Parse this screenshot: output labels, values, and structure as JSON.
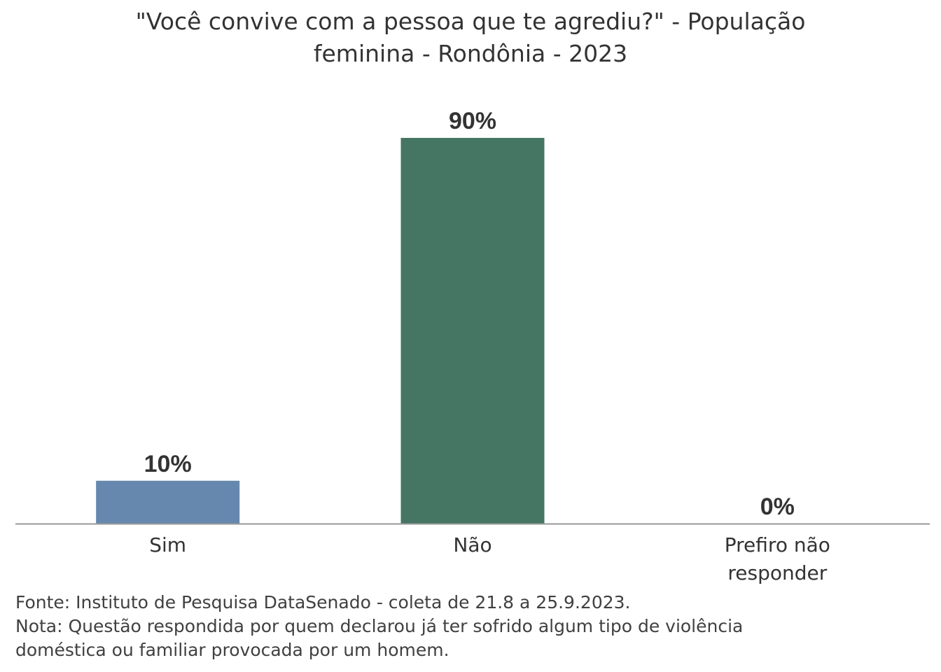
{
  "chart_data": {
    "type": "bar",
    "title_lines": [
      "\"Você convive com a pessoa que te agrediu?\" - População",
      "feminina - Rondônia - 2023"
    ],
    "categories": [
      [
        "Sim"
      ],
      [
        "Não"
      ],
      [
        "Prefiro não",
        "responder"
      ]
    ],
    "values": [
      10,
      90,
      0
    ],
    "data_labels": [
      "10%",
      "90%",
      "0%"
    ],
    "colors": [
      "#6688ae",
      "#457563",
      "#8c8c8c"
    ],
    "ylim": [
      0,
      90
    ],
    "grid": false,
    "legend": "none",
    "axis_color": "#999999"
  },
  "footer": {
    "source": "Fonte: Instituto de Pesquisa DataSenado - coleta de 21.8 a 25.9.2023.",
    "note_lines": [
      "Nota: Questão respondida por quem declarou já ter sofrido algum tipo de violência",
      "doméstica ou familiar provocada por um homem."
    ]
  }
}
